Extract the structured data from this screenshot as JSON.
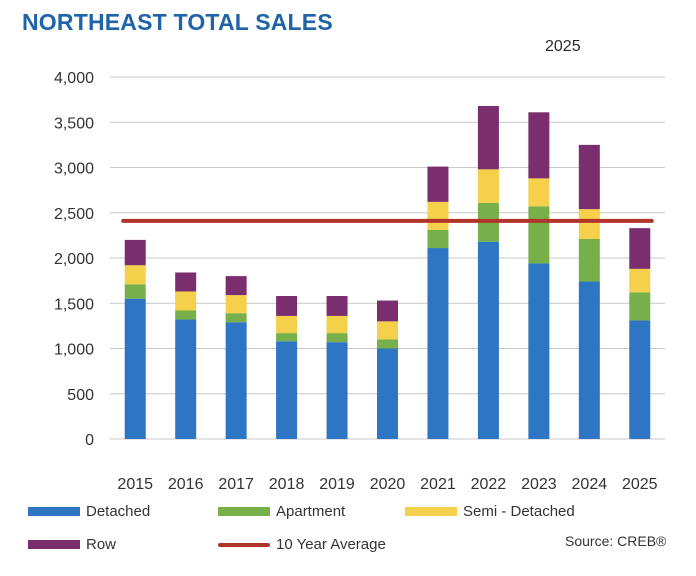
{
  "title": "NORTHEAST TOTAL SALES",
  "subtitle": "2025",
  "source": "Source: CREB®",
  "legend": {
    "detached": "Detached",
    "apartment": "Apartment",
    "semi": "Semi - Detached",
    "row": "Row",
    "avg": "10 Year Average"
  },
  "colors": {
    "detached": "#2e75c4",
    "apartment": "#77b04a",
    "semi": "#f5d04a",
    "row": "#7a2e6e",
    "avg": "#b03428",
    "grid": "#c8c8c8"
  },
  "chart_data": {
    "type": "bar",
    "stacked": true,
    "title": "NORTHEAST TOTAL SALES",
    "subtitle": "2025",
    "categories": [
      "2015",
      "2016",
      "2017",
      "2018",
      "2019",
      "2020",
      "2021",
      "2022",
      "2023",
      "2024",
      "2025"
    ],
    "series": [
      {
        "name": "Detached",
        "values": [
          1550,
          1320,
          1290,
          1080,
          1070,
          1000,
          2110,
          2180,
          1940,
          1740,
          1310
        ]
      },
      {
        "name": "Apartment",
        "values": [
          160,
          100,
          100,
          90,
          100,
          100,
          200,
          430,
          630,
          470,
          310
        ]
      },
      {
        "name": "Semi - Detached",
        "values": [
          210,
          210,
          200,
          190,
          190,
          200,
          310,
          370,
          310,
          330,
          260
        ]
      },
      {
        "name": "Row",
        "values": [
          280,
          210,
          210,
          220,
          220,
          230,
          390,
          700,
          730,
          710,
          450
        ]
      }
    ],
    "reference_line": {
      "name": "10 Year Average",
      "value": 2410
    },
    "ylim": [
      0,
      4000
    ],
    "yticks": [
      0,
      500,
      1000,
      1500,
      2000,
      2500,
      3000,
      3500,
      4000
    ],
    "ytick_labels": [
      "0",
      "500",
      "1,000",
      "1,500",
      "2,000",
      "2,500",
      "3,000",
      "3,500",
      "4,000"
    ],
    "xlabel": "",
    "ylabel": "",
    "grid": true,
    "legend_position": "bottom"
  }
}
